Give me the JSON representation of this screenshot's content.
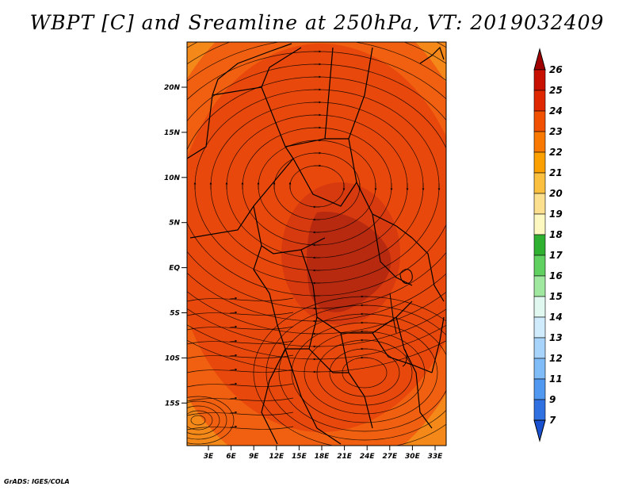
{
  "title": "WBPT [C] and Sreamline at 250hPa, VT: 2019032409",
  "credit": "GrADS: IGES/COLA",
  "lat_ticks": [
    "20N",
    "15N",
    "10N",
    "5N",
    "EQ",
    "5S",
    "10S",
    "15S"
  ],
  "lon_ticks": [
    "3E",
    "6E",
    "9E",
    "12E",
    "15E",
    "18E",
    "21E",
    "24E",
    "27E",
    "30E",
    "33E"
  ],
  "colorbar": {
    "labels": [
      "26",
      "25",
      "24",
      "23",
      "22",
      "21",
      "20",
      "19",
      "18",
      "17",
      "16",
      "15",
      "14",
      "13",
      "12",
      "11",
      "9",
      "7"
    ],
    "colors": [
      "#a00000",
      "#c81000",
      "#e02800",
      "#f05000",
      "#f87800",
      "#fca000",
      "#fcc040",
      "#fce090",
      "#fcf8c0",
      "#30b030",
      "#60d060",
      "#a0e8a0",
      "#e0f8f0",
      "#d0ecfc",
      "#a8d4fc",
      "#80bcf8",
      "#5098f0",
      "#3070e0",
      "#1850d0"
    ]
  },
  "field_colors": {
    "core": "#b82a10",
    "inner": "#d63a0e",
    "main": "#e8480c",
    "outer": "#f06010",
    "edge": "#f48818"
  }
}
